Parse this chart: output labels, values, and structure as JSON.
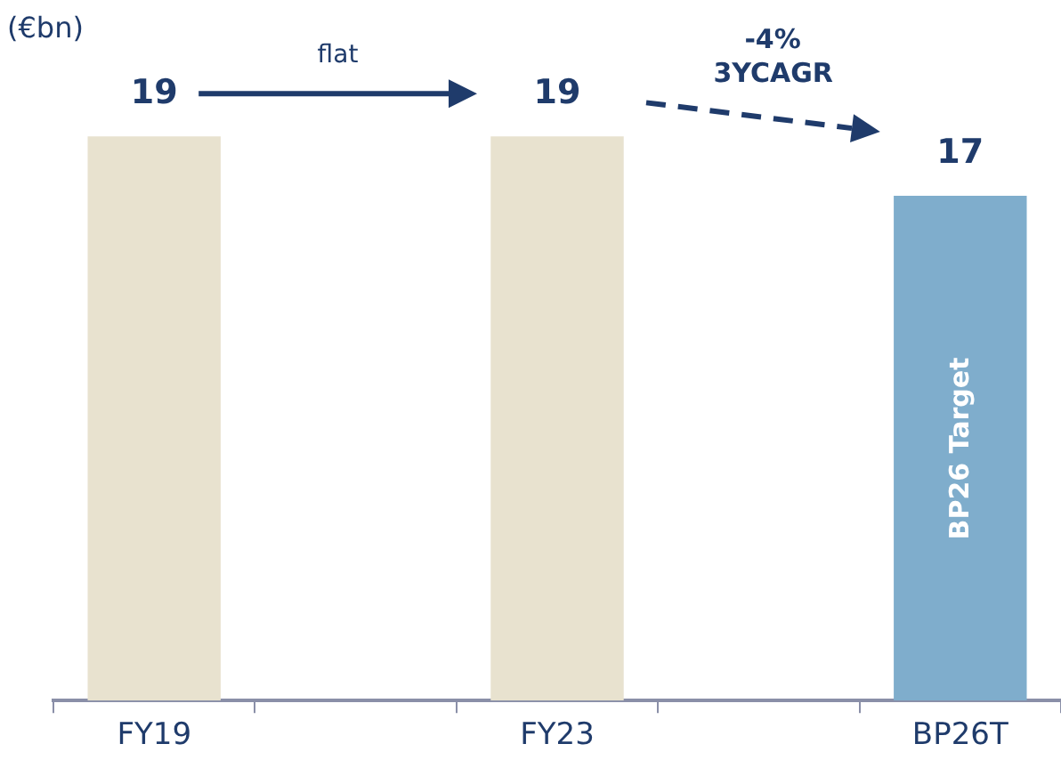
{
  "chart_data": {
    "type": "bar",
    "ylabel": "(€bn)",
    "categories": [
      "FY19",
      null,
      "FY23",
      null,
      "BP26T"
    ],
    "values": [
      19,
      null,
      19,
      null,
      17
    ],
    "colors": [
      "#e8e2cf",
      null,
      "#e8e2cf",
      null,
      "#7fadcc"
    ],
    "data_labels": true,
    "annotations": [
      "flat",
      "-4%",
      "3YCAGR",
      "BP26 Target"
    ]
  }
}
